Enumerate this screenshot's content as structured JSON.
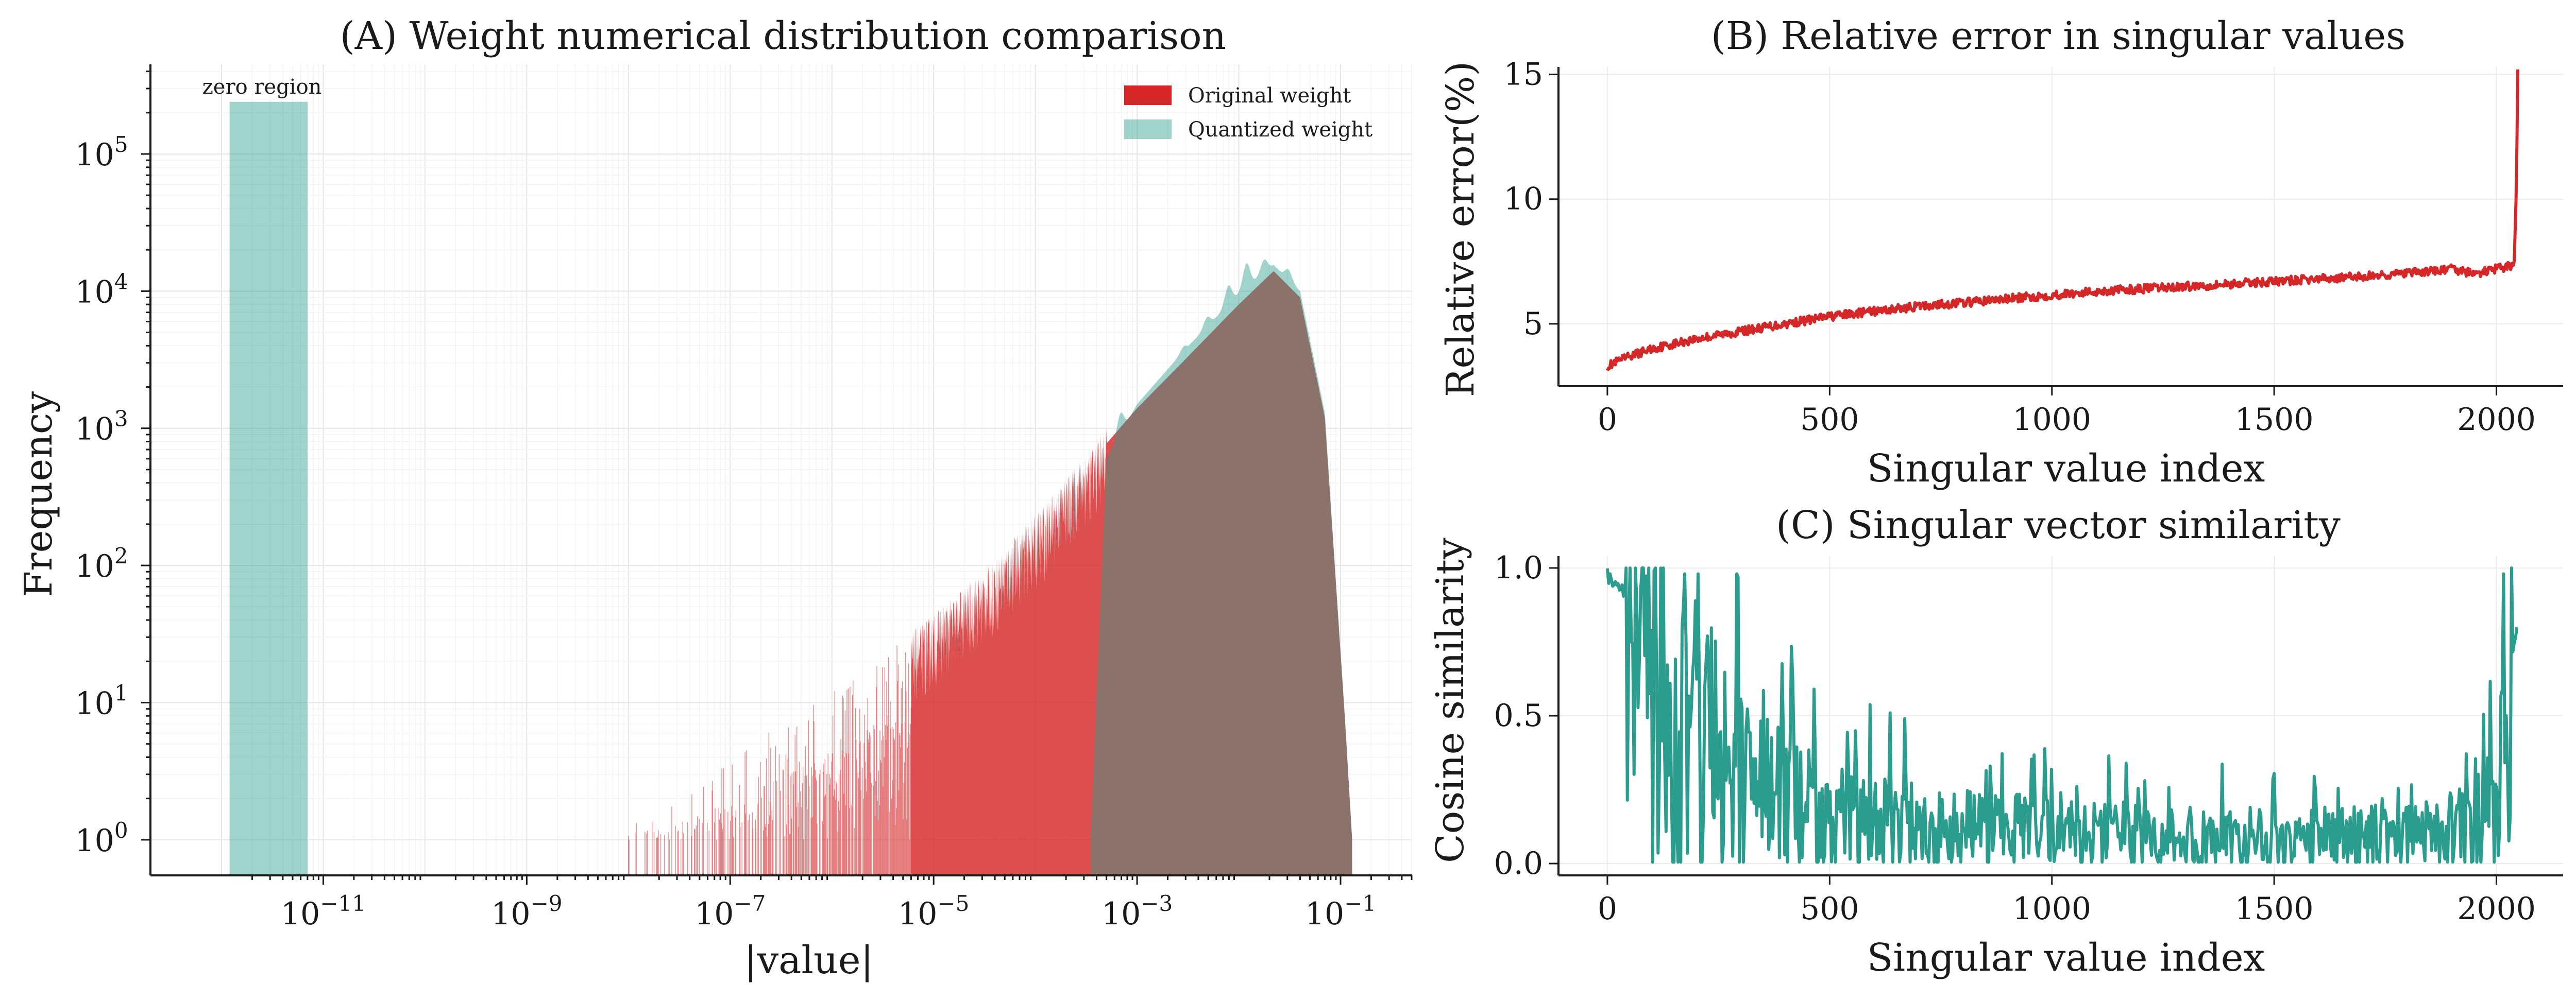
{
  "colors": {
    "original": "#d62728",
    "quantized": "#2a9d8f",
    "overlap": "#8b736c"
  },
  "chart_data": [
    {
      "id": "A",
      "type": "area",
      "title": "(A) Weight numerical distribution comparison",
      "xlabel": "|value|",
      "ylabel": "Frequency",
      "xscale": "log",
      "yscale": "log",
      "xlim": [
        2e-13,
        0.5
      ],
      "ylim": [
        0.55,
        450000
      ],
      "xticks": [
        {
          "value": 1e-11,
          "base": "10",
          "exp": "−11"
        },
        {
          "value": 1e-09,
          "base": "10",
          "exp": "−9"
        },
        {
          "value": 1e-07,
          "base": "10",
          "exp": "−7"
        },
        {
          "value": 1e-05,
          "base": "10",
          "exp": "−5"
        },
        {
          "value": 0.001,
          "base": "10",
          "exp": "−3"
        },
        {
          "value": 0.1,
          "base": "10",
          "exp": "−1"
        }
      ],
      "yticks": [
        {
          "value": 1,
          "base": "10",
          "exp": "0"
        },
        {
          "value": 10,
          "base": "10",
          "exp": "1"
        },
        {
          "value": 100,
          "base": "10",
          "exp": "2"
        },
        {
          "value": 1000,
          "base": "10",
          "exp": "3"
        },
        {
          "value": 10000,
          "base": "10",
          "exp": "4"
        },
        {
          "value": 100000,
          "base": "10",
          "exp": "5"
        }
      ],
      "legend": {
        "position": "top-right",
        "entries": [
          "Original weight",
          "Quantized weight"
        ]
      },
      "annotation": {
        "text": "zero region",
        "x": 2.5e-12,
        "y": 300000
      },
      "zero_region_bar": {
        "x_from": 1.2e-12,
        "x_to": 7e-12,
        "frequency": 240000
      },
      "series": [
        {
          "name": "Original weight",
          "sparse_from": 1e-08,
          "x": [
            6e-06,
            3e-05,
            0.0001,
            0.0003,
            0.001,
            0.003,
            0.01,
            0.022,
            0.04,
            0.07,
            0.11,
            0.13
          ],
          "y": [
            25,
            70,
            180,
            500,
            1400,
            3200,
            8000,
            14000,
            9000,
            1200,
            8,
            1
          ]
        },
        {
          "name": "Quantized weight",
          "x": [
            0.00035,
            0.0005,
            0.001,
            0.003,
            0.01,
            0.022,
            0.04,
            0.07,
            0.11,
            0.13
          ],
          "y": [
            1,
            600,
            1500,
            3800,
            9500,
            15500,
            10000,
            1300,
            8,
            1
          ],
          "peaks": [
            {
              "x": 0.0007,
              "y": 1300
            },
            {
              "x": 0.0015,
              "y": 1800
            },
            {
              "x": 0.003,
              "y": 4000
            },
            {
              "x": 0.005,
              "y": 6500
            },
            {
              "x": 0.008,
              "y": 11000
            },
            {
              "x": 0.012,
              "y": 16000
            },
            {
              "x": 0.018,
              "y": 17000
            },
            {
              "x": 0.03,
              "y": 14500
            }
          ]
        }
      ],
      "grid": true
    },
    {
      "id": "B",
      "type": "line",
      "title": "(B) Relative error in singular values",
      "xlabel": "Singular value index",
      "ylabel": "Relative error(%)",
      "xlim": [
        -110,
        2150
      ],
      "ylim": [
        2.5,
        15.3
      ],
      "xticks": [
        0,
        500,
        1000,
        1500,
        2000
      ],
      "yticks": [
        5,
        10,
        15
      ],
      "grid": true,
      "series": [
        {
          "name": "",
          "x": [
            0,
            50,
            100,
            200,
            300,
            400,
            500,
            700,
            900,
            1100,
            1300,
            1500,
            1700,
            1850,
            1900,
            1950,
            2000,
            2030,
            2040,
            2045,
            2048
          ],
          "y": [
            3.3,
            3.7,
            4.0,
            4.4,
            4.7,
            5.0,
            5.3,
            5.7,
            6.0,
            6.3,
            6.5,
            6.7,
            6.9,
            7.1,
            7.2,
            7.0,
            7.2,
            7.3,
            7.5,
            10.5,
            15.2
          ]
        }
      ]
    },
    {
      "id": "C",
      "type": "line",
      "title": "(C) Singular vector similarity",
      "xlabel": "Singular value index",
      "ylabel": "Cosine similarity",
      "xlim": [
        -110,
        2150
      ],
      "ylim": [
        -0.04,
        1.04
      ],
      "xticks": [
        0,
        500,
        1000,
        1500,
        2000
      ],
      "yticks": [
        {
          "value": 0.0,
          "label": "0.0"
        },
        {
          "value": 0.5,
          "label": "0.5"
        },
        {
          "value": 1.0,
          "label": "1.0"
        }
      ],
      "grid": true,
      "series": [
        {
          "name": "",
          "x": [
            0,
            30,
            60,
            90,
            120,
            160,
            200,
            250,
            300,
            350,
            400,
            450,
            500,
            600,
            700,
            800,
            900,
            1000,
            1100,
            1200,
            1300,
            1400,
            1500,
            1600,
            1700,
            1800,
            1900,
            1950,
            2000,
            2020,
            2035,
            2048
          ],
          "y": [
            1.0,
            0.97,
            0.88,
            0.7,
            0.6,
            0.5,
            0.45,
            0.38,
            0.32,
            0.27,
            0.23,
            0.2,
            0.18,
            0.15,
            0.14,
            0.13,
            0.12,
            0.11,
            0.11,
            0.1,
            0.1,
            0.1,
            0.09,
            0.1,
            0.1,
            0.1,
            0.12,
            0.15,
            0.2,
            0.4,
            0.75,
            0.85
          ]
        }
      ]
    }
  ]
}
